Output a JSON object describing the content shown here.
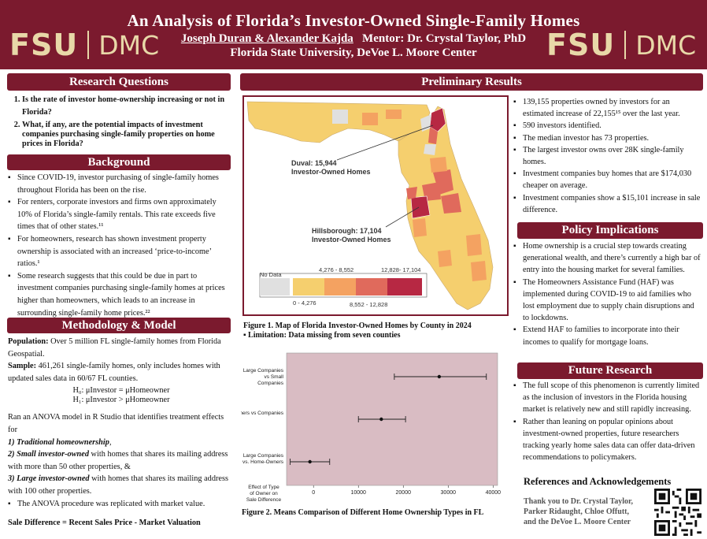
{
  "header": {
    "title": "An Analysis of Florida’s Investor-Owned Single-Family Homes",
    "authors": "Joseph Duran & Alexander Kajda",
    "mentor": "Mentor: Dr. Crystal Taylor, PhD",
    "institution": "Florida State University, DeVoe L. Moore Center",
    "logo_left": "FSU",
    "logo_right": "DMC"
  },
  "research_questions": {
    "title": "Research Questions",
    "items": [
      "Is the rate of investor home-ownership increasing or not in Florida?",
      "What, if any, are the potential impacts of investment companies purchasing single-family properties on home prices in Florida?"
    ]
  },
  "background": {
    "title": "Background",
    "items": [
      "Since COVID-19, investor purchasing of single-family homes throughout Florida has been on the rise.",
      "For renters, corporate investors and firms own approximately 10% of Florida’s single-family rentals. This rate exceeds five times that of other states.¹¹",
      "For homeowners, research has shown investment property ownership is associated with an increased ‘price-to-income’ ratios.¹",
      "Some research suggests that this could be due in part to investment companies purchasing single-family homes at prices higher than homeowners, which leads to an increase in surrounding single-family home prices.²²"
    ]
  },
  "methodology": {
    "title": "Methodology & Model",
    "population_label": "Population:",
    "population_text": " Over 5 million FL single-family homes from Florida Geospatial.",
    "sample_label": "Sample:",
    "sample_text": " 461,261 single-family homes, only includes homes with updated sales data in 60/67 FL counties.",
    "h0": "H₀: μInvestor = μHomeowner",
    "h1": "H₁: μInvestor > μHomeowner",
    "anova_intro": "Ran an ANOVA model in R Studio that identifies treatment effects for",
    "effect1": "1) Traditional homeownership",
    "effect1_tail": ",",
    "effect2": "2) Small investor-owned",
    "effect2_tail": " with homes that shares its mailing address with more than 50 other properties, &",
    "effect3": "3) Large investor-owned",
    "effect3_tail": " with homes that shares its mailing address with 100 other properties.",
    "anova_note": "The ANOVA procedure was replicated with market value.",
    "formula": "Sale Difference = Recent Sales Price - Market Valuation"
  },
  "preliminary_results": {
    "title": "Preliminary Results",
    "figure1_caption": "Figure 1. Map of Florida Investor-Owned Homes by County in 2024",
    "figure1_note": "Limitation: Data missing from seven counties",
    "figure2_caption": "Figure 2. Means Comparison of Different Home Ownership Types in FL",
    "duval_label_1": "Duval: 15,944",
    "duval_label_2": "Investor-Owned Homes",
    "hills_label_1": "Hillsborough: 17,104",
    "hills_label_2": "Investor-Owned Homes",
    "legend": {
      "no_data": "No Data",
      "r1": "0 - 4,276",
      "r2": "4,276 - 8,552",
      "r3": "8,552 - 12,828",
      "r4": "12,828- 17,104",
      "colors": [
        "#e0e0e0",
        "#f5cf6e",
        "#f4a261",
        "#e06a5c",
        "#b72843"
      ]
    },
    "bullets": [
      "139,155 properties owned by investors for  an estimated increase of 22,155¹⁵ over the last year.",
      "590 investors  identified.",
      "The median investor has 73 properties.",
      "The largest investor owns over 28K single-family homes.",
      "Investment companies buy homes that are $174,030 cheaper on average.",
      "Investment companies show a $15,101 increase in sale difference."
    ]
  },
  "policy": {
    "title": "Policy Implications",
    "items": [
      "Home ownership is a crucial step towards creating generational wealth, and there’s currently a high bar of entry into the housing market for several families.",
      "The Homeowners Assistance Fund (HAF) was implemented during COVID-19 to aid families who lost employment due to supply chain disruptions and to lockdowns.",
      "Extend HAF to families to incorporate into their incomes to qualify for mortgage loans."
    ]
  },
  "future": {
    "title": "Future Research",
    "items": [
      "The full scope of this phenomenon is currently limited as the inclusion of investors in the Florida housing market is relatively new and still rapidly increasing.",
      "Rather than leaning on popular opinions about investment-owned properties, future researchers tracking yearly home sales data can offer data-driven recommendations to policymakers."
    ]
  },
  "references": {
    "title": "References and Acknowledgements",
    "thanks": [
      "Thank you to Dr. Crystal Taylor,",
      "Parker Ridaught, Chloe Offutt,",
      "and the DeVoe L. Moore Center"
    ]
  },
  "chart_data": {
    "type": "scatter",
    "title": "",
    "xlabel": "",
    "ylabel": "Effect of Type of Owner on Sale Difference",
    "categories": [
      "Large Companies vs Small Companies",
      "Home-Owners vs Companies",
      "Large Companies vs. Home-Owners"
    ],
    "x_ticks": [
      0,
      10000,
      20000,
      30000,
      40000
    ],
    "xlim": [
      -6000,
      41000
    ],
    "series": [
      {
        "means": [
          28000,
          15101,
          -800
        ],
        "lower": [
          18000,
          10000,
          -5200
        ],
        "upper": [
          38500,
          20500,
          3600
        ]
      }
    ],
    "background": "#d9bcc3"
  }
}
